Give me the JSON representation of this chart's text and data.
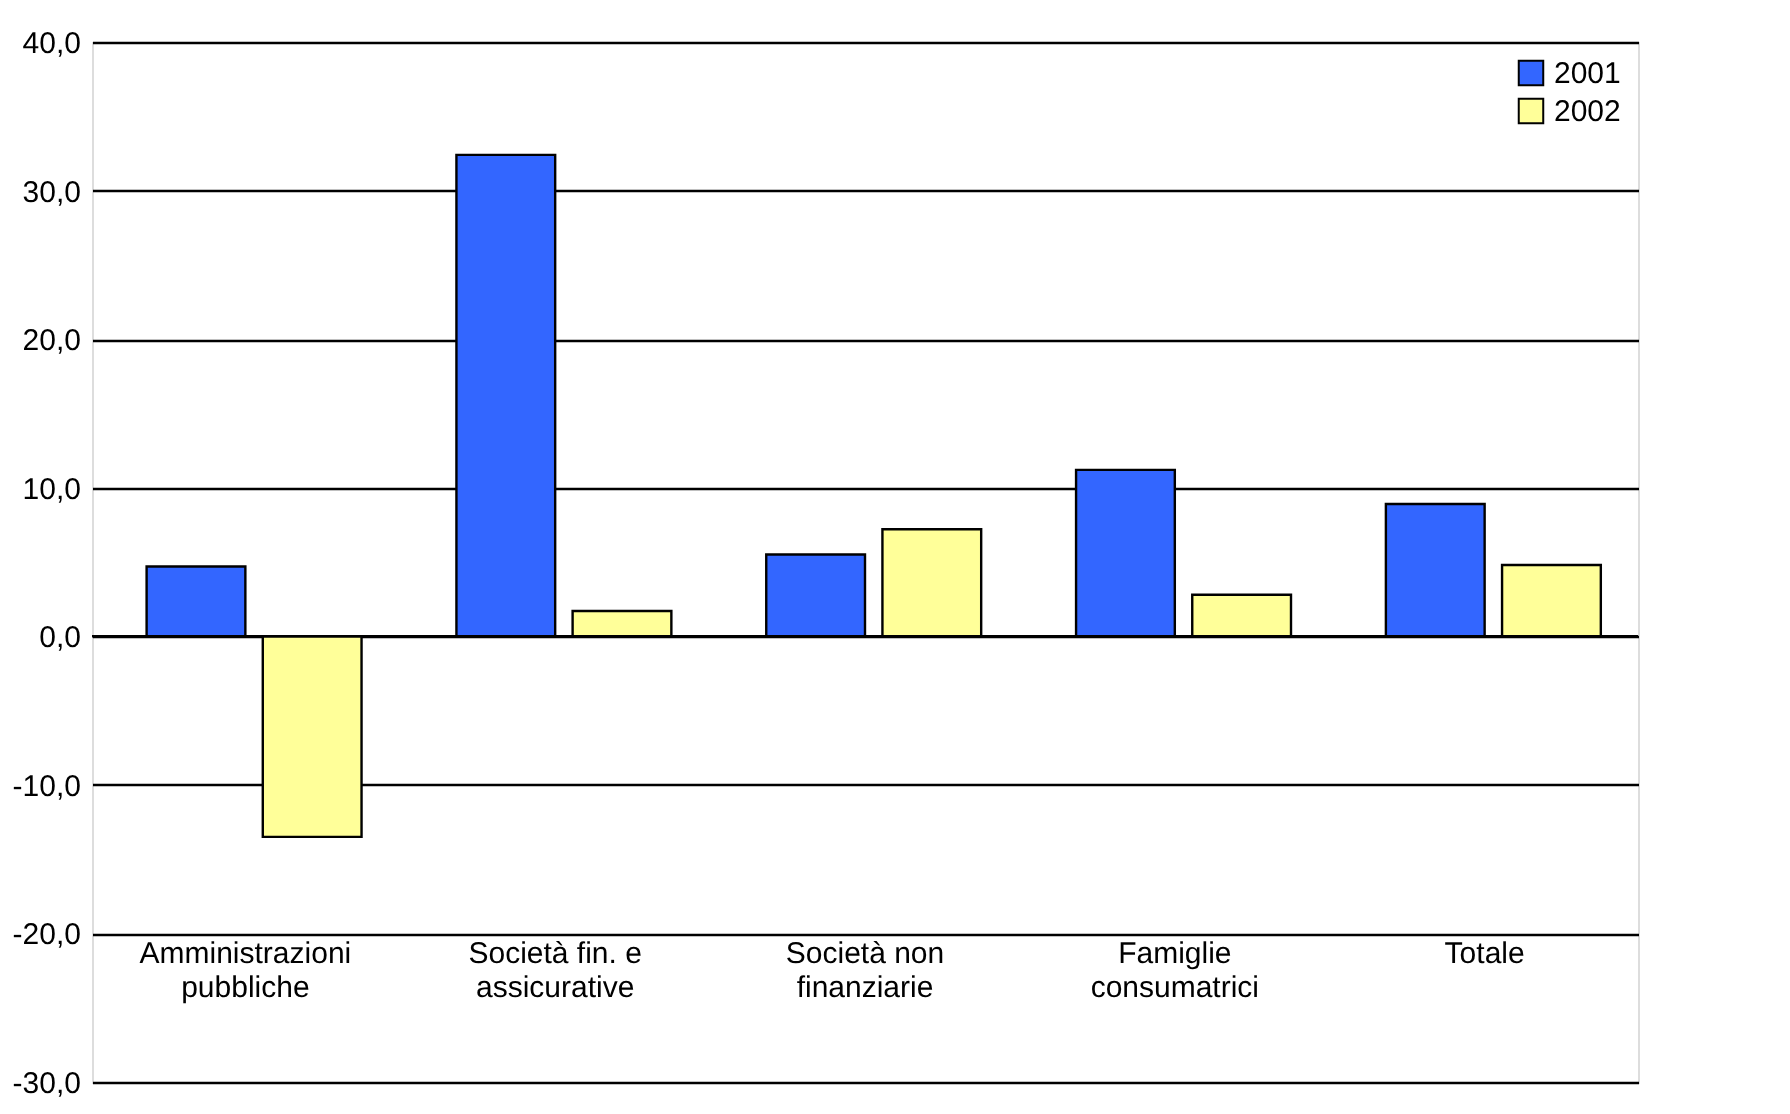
{
  "chart_data": {
    "type": "bar",
    "categories": [
      "Amministrazioni pubbliche",
      "Società fin. e assicurative",
      "Società non finanziarie",
      "Famiglie consumatrici",
      "Totale"
    ],
    "series": [
      {
        "name": "2001",
        "color": "#3366ff",
        "values": [
          4.7,
          32.4,
          5.5,
          11.2,
          8.9
        ]
      },
      {
        "name": "2002",
        "color": "#ffff99",
        "values": [
          -13.5,
          1.7,
          7.2,
          2.8,
          4.8
        ]
      }
    ],
    "ylim": [
      -30,
      40
    ],
    "yticks": [
      {
        "value": -30,
        "label": "-30,0"
      },
      {
        "value": -20,
        "label": "-20,0"
      },
      {
        "value": -10,
        "label": "-10,0"
      },
      {
        "value": 0,
        "label": "0,0"
      },
      {
        "value": 10,
        "label": "10,0"
      },
      {
        "value": 20,
        "label": "20,0"
      },
      {
        "value": 30,
        "label": "30,0"
      },
      {
        "value": 40,
        "label": "40,0"
      }
    ],
    "grid": "y",
    "legend": "top right"
  }
}
